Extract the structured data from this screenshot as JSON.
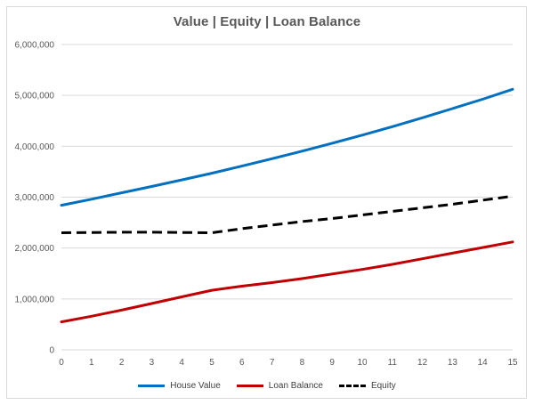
{
  "chart_data": {
    "type": "line",
    "title": "Value | Equity | Loan Balance",
    "xlabel": "",
    "ylabel": "",
    "x": [
      0,
      1,
      2,
      3,
      4,
      5,
      6,
      7,
      8,
      9,
      10,
      11,
      12,
      13,
      14,
      15
    ],
    "ylim": [
      0,
      6000000
    ],
    "y_ticks": [
      "0",
      "1,000,000",
      "2,000,000",
      "3,000,000",
      "4,000,000",
      "5,000,000",
      "6,000,000"
    ],
    "y_tick_values": [
      0,
      1000000,
      2000000,
      3000000,
      4000000,
      5000000,
      6000000
    ],
    "grid": true,
    "legend_position": "bottom",
    "series": [
      {
        "name": "House Value",
        "color": "#0070c0",
        "dash": "solid",
        "values": [
          2840000,
          2960000,
          3085000,
          3210000,
          3340000,
          3470000,
          3610000,
          3755000,
          3905000,
          4060000,
          4220000,
          4385000,
          4560000,
          4740000,
          4925000,
          5120000
        ]
      },
      {
        "name": "Loan Balance",
        "color": "#c00000",
        "dash": "solid",
        "values": [
          550000,
          660000,
          780000,
          910000,
          1040000,
          1170000,
          1250000,
          1320000,
          1400000,
          1490000,
          1580000,
          1680000,
          1790000,
          1900000,
          2010000,
          2120000
        ]
      },
      {
        "name": "Equity",
        "color": "#000000",
        "dash": "dashed",
        "values": [
          2300000,
          2305000,
          2310000,
          2310000,
          2305000,
          2300000,
          2380000,
          2450000,
          2520000,
          2580000,
          2650000,
          2720000,
          2790000,
          2860000,
          2940000,
          3020000
        ]
      }
    ]
  }
}
